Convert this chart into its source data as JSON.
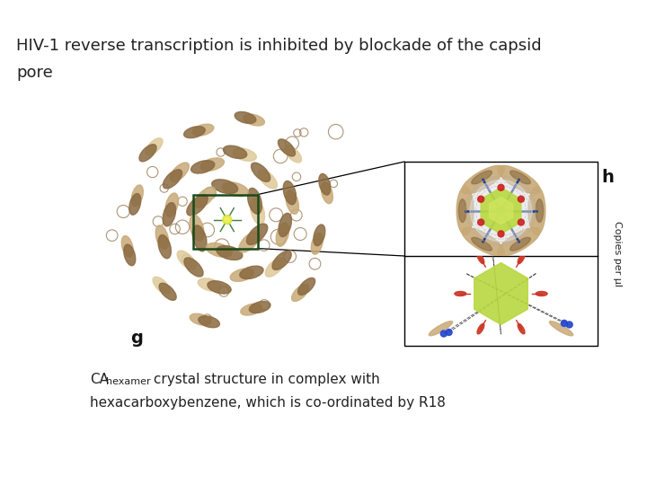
{
  "title_line1": "HIV-1 reverse transcription is inhibited by blockade of the capsid",
  "title_line2": "pore",
  "label_g": "g",
  "label_h": "h",
  "caption_line1_part1": "CA",
  "caption_line1_sub": "hexamer",
  "caption_line1_part2": " crystal structure in complex with",
  "caption_line2": "hexacarboxybenzene, which is co-ordinated by R18",
  "side_label": "Copies per μl",
  "bg_color": "#ffffff",
  "title_fontsize": 13,
  "label_fontsize": 13,
  "caption_fontsize": 11,
  "side_label_fontsize": 8,
  "title_color": "#222222",
  "label_color": "#111111",
  "caption_color": "#222222",
  "tan": "#c8aa78",
  "dk_tan": "#8a6a40",
  "lt_tan": "#dfc99a",
  "green_dark": "#1a4a1a",
  "mol_green": "#b8d840",
  "panel_bg_g": "#ffffff",
  "panel_bg_h": "#f0ede8"
}
